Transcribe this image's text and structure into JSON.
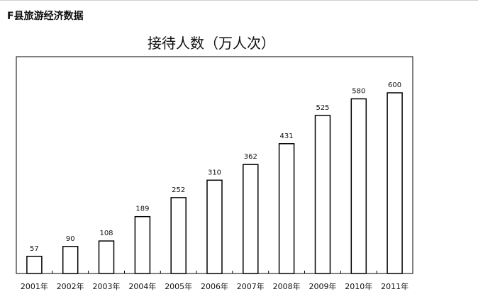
{
  "page": {
    "heading": "F县旅游经济数据"
  },
  "chart_data": {
    "type": "bar",
    "title": "接待人数（万人次）",
    "xlabel": "",
    "ylabel": "",
    "categories": [
      "2001年",
      "2002年",
      "2003年",
      "2004年",
      "2005年",
      "2006年",
      "2007年",
      "2008年",
      "2009年",
      "2010年",
      "2011年"
    ],
    "values": [
      57,
      90,
      108,
      189,
      252,
      310,
      362,
      431,
      525,
      580,
      600
    ],
    "ylim": [
      0,
      720
    ],
    "grid": false,
    "legend": "none",
    "bar_fill": "#ffffff",
    "bar_stroke": "#000000",
    "frame_color": "#000000"
  }
}
